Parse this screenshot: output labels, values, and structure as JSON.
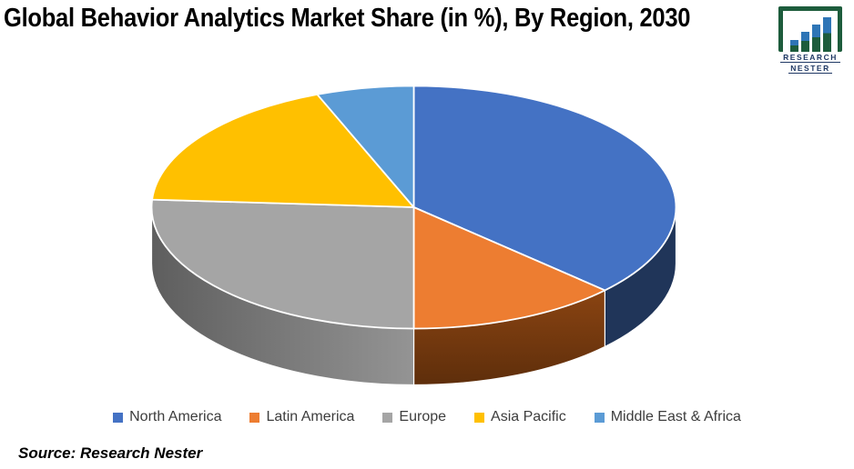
{
  "title": "Global Behavior Analytics Market Share (in %), By Region, 2030",
  "source": "Source: Research Nester",
  "logo": {
    "line1": "RESEARCH",
    "line2": "NESTER",
    "frame_color": "#1D5C3C",
    "bar_blue": "#2E75B6",
    "bar_green": "#1D5C3C",
    "text_color": "#1F3864"
  },
  "colors": {
    "background": "#FFFFFF",
    "title": "#000000",
    "legend_text": "#3D3D3D",
    "slice_separator": "#FFFFFF"
  },
  "chart_data": {
    "type": "pie",
    "style": "3d",
    "title": "Global Behavior Analytics Market Share (in %), By Region, 2030",
    "unit": "%",
    "start_angle_deg": 0,
    "direction": "clockwise",
    "legend_position": "bottom",
    "data_labels_shown": false,
    "segments": [
      {
        "label": "North America",
        "value": 37,
        "color": "#4472C4",
        "side": {
          "color": "#203559"
        }
      },
      {
        "label": "Latin America",
        "value": 13,
        "color": "#ED7D31",
        "side": {
          "from": "#8A4412",
          "to": "#5E2E0B",
          "dir": "v"
        }
      },
      {
        "label": "Europe",
        "value": 26,
        "color": "#A5A5A5",
        "side": {
          "from": "#5E5E5E",
          "to": "#949494",
          "dir": "h"
        }
      },
      {
        "label": "Asia Pacific",
        "value": 18,
        "color": "#FFC000"
      },
      {
        "label": "Middle East & Africa",
        "value": 6,
        "color": "#5B9BD5"
      }
    ]
  }
}
